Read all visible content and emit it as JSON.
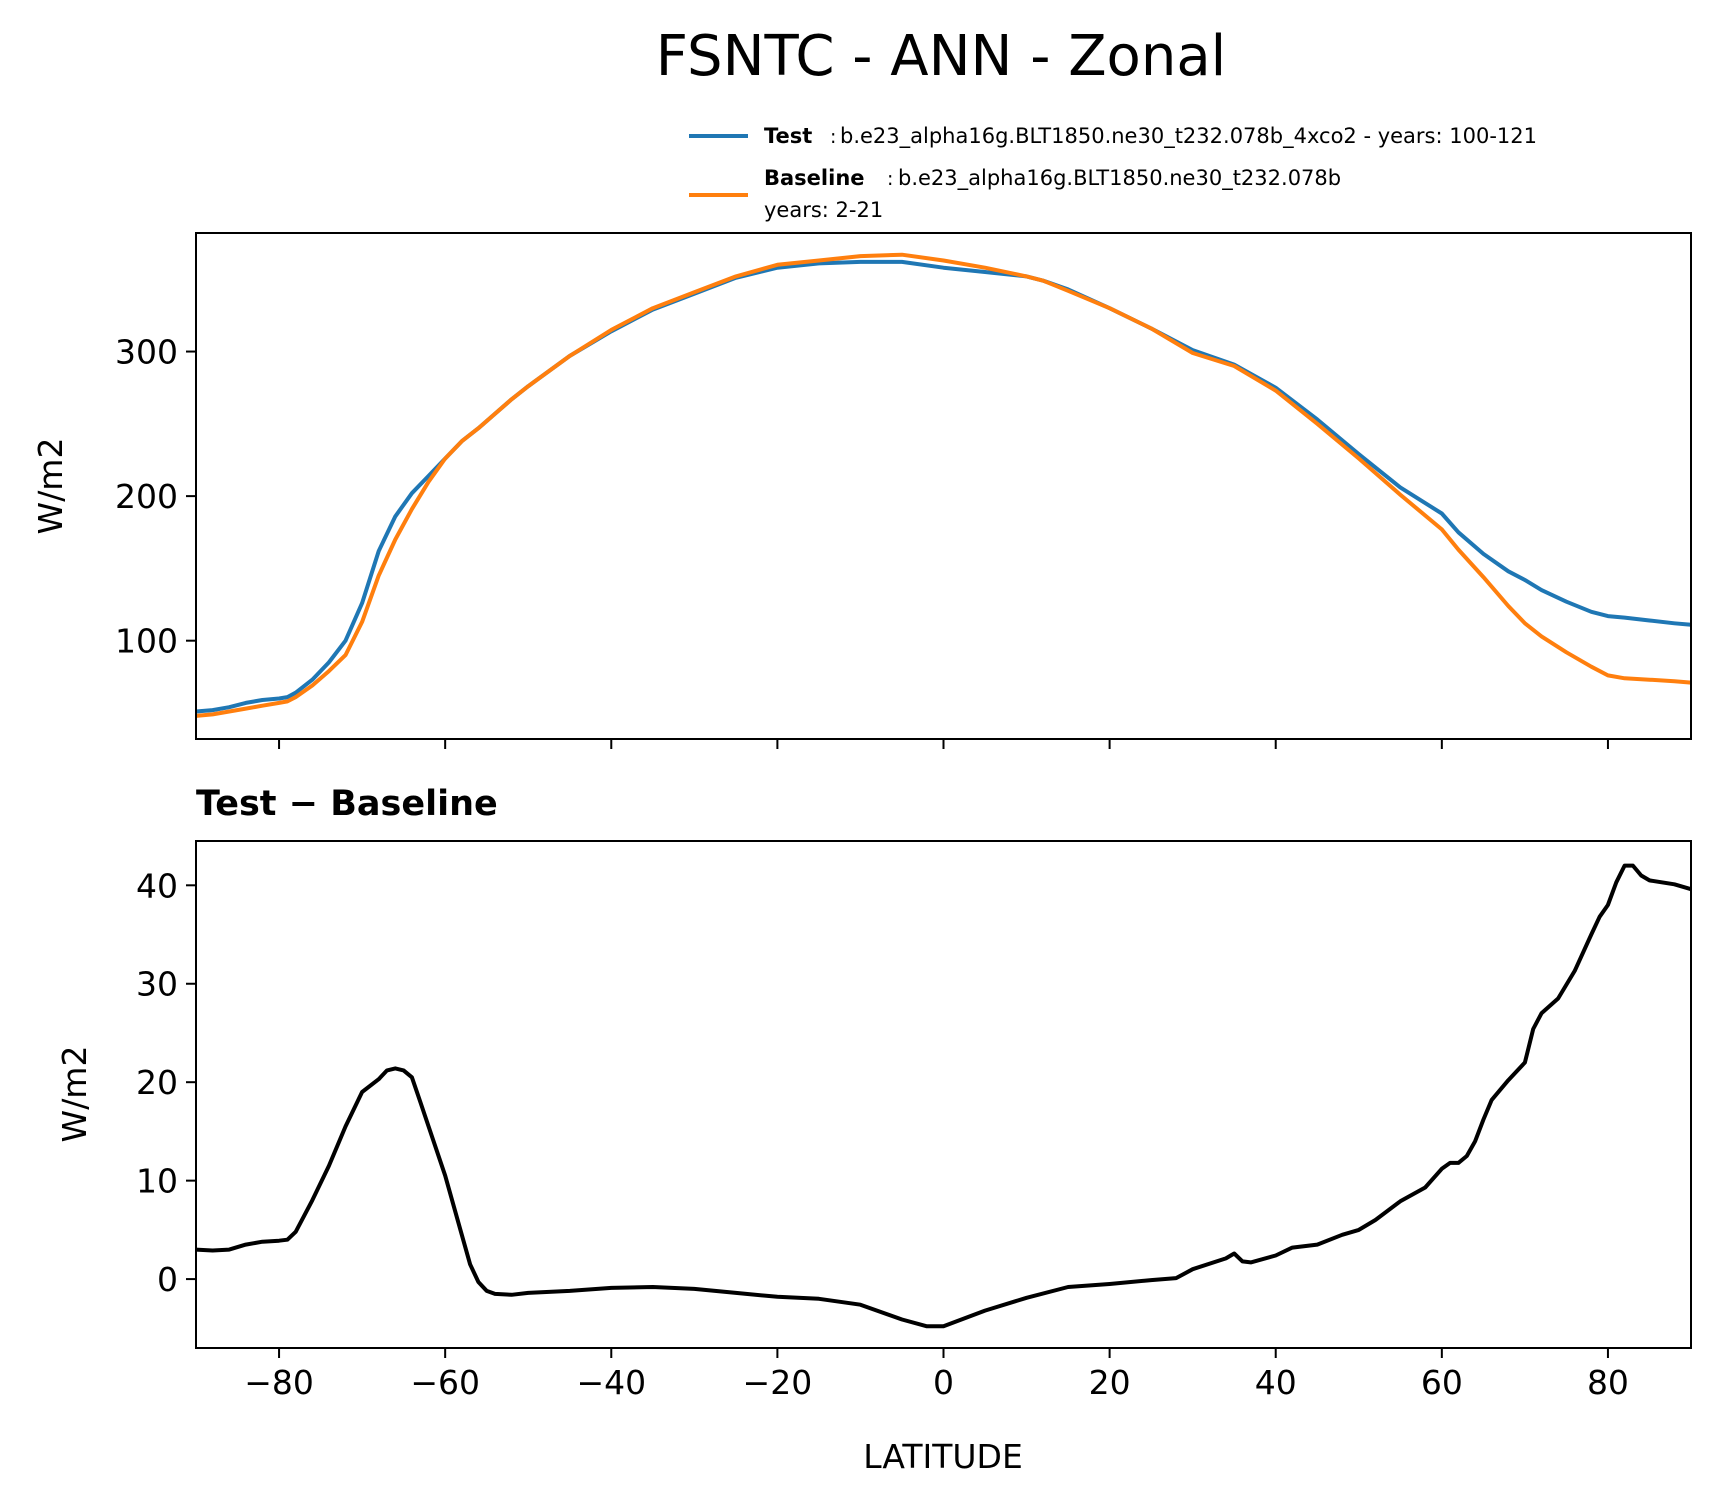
{
  "title": "FSNTC - ANN - Zonal",
  "chart_data": [
    {
      "type": "line",
      "ylabel": "W/m2",
      "xlim": [
        -90,
        90
      ],
      "ylim": [
        32,
        382
      ],
      "yticks": [
        100,
        200,
        300
      ],
      "legend_placement": "top-right, above plot",
      "series": [
        {
          "name": "Test",
          "legend_desc": "b.e23_alpha16g.BLT1850.ne30_t232.078b_4xco2 - years: 100-121",
          "color": "#1f77b4",
          "x": [
            -90,
            -88,
            -86,
            -84,
            -82,
            -80,
            -79,
            -78,
            -76,
            -74,
            -72,
            -70,
            -68,
            -66,
            -64,
            -62,
            -60,
            -58,
            -56,
            -54,
            -52,
            -50,
            -45,
            -40,
            -35,
            -30,
            -25,
            -20,
            -15,
            -10,
            -5,
            0,
            5,
            10,
            12,
            15,
            20,
            25,
            30,
            35,
            40,
            45,
            50,
            55,
            60,
            62,
            65,
            68,
            70,
            72,
            75,
            78,
            80,
            82,
            85,
            88,
            90
          ],
          "values": [
            51,
            52,
            54,
            57,
            59,
            60,
            61,
            64,
            73,
            85,
            100,
            126,
            162,
            186,
            202,
            214,
            226,
            238,
            247,
            257,
            267,
            276,
            297,
            314,
            329,
            340,
            351,
            358,
            361,
            362,
            362,
            358,
            355,
            352,
            349,
            343,
            330,
            316,
            301,
            291,
            275,
            253,
            229,
            206,
            188,
            175,
            160,
            148,
            142,
            135,
            127,
            120,
            117,
            116,
            114,
            112,
            111
          ]
        },
        {
          "name": "Baseline",
          "legend_desc": "b.e23_alpha16g.BLT1850.ne30_t232.078b",
          "legend_desc2": "years: 2-21",
          "color": "#ff7f0e",
          "x": [
            -90,
            -88,
            -86,
            -84,
            -82,
            -80,
            -79,
            -78,
            -76,
            -74,
            -72,
            -70,
            -68,
            -66,
            -64,
            -62,
            -60,
            -58,
            -56,
            -54,
            -52,
            -50,
            -45,
            -40,
            -35,
            -30,
            -25,
            -20,
            -15,
            -10,
            -5,
            0,
            5,
            10,
            12,
            15,
            20,
            25,
            30,
            35,
            40,
            45,
            50,
            55,
            60,
            62,
            65,
            68,
            70,
            72,
            75,
            78,
            80,
            82,
            85,
            88,
            90
          ],
          "values": [
            48,
            49,
            51,
            53,
            55,
            57,
            58,
            61,
            69,
            79,
            90,
            113,
            145,
            170,
            191,
            210,
            226,
            238,
            247,
            257,
            267,
            276,
            297,
            315,
            330,
            341,
            352,
            360,
            363,
            366,
            367,
            363,
            358,
            352,
            349,
            342,
            330,
            316,
            299,
            290,
            273,
            250,
            226,
            201,
            177,
            163,
            144,
            124,
            112,
            103,
            92,
            82,
            76,
            74,
            73,
            72,
            71
          ]
        }
      ]
    },
    {
      "type": "line",
      "title": "Test − Baseline",
      "xlabel": "LATITUDE",
      "ylabel": "W/m2",
      "xlim": [
        -90,
        90
      ],
      "ylim": [
        -7,
        44.5
      ],
      "xticks": [
        -80,
        -60,
        -40,
        -20,
        0,
        20,
        40,
        60,
        80
      ],
      "xtick_labels": [
        "−80",
        "−60",
        "−40",
        "−20",
        "0",
        "20",
        "40",
        "60",
        "80"
      ],
      "yticks": [
        0,
        10,
        20,
        30,
        40
      ],
      "series": [
        {
          "color": "#000000",
          "x": [
            -90,
            -88,
            -86,
            -84,
            -82,
            -80,
            -79,
            -78,
            -76,
            -74,
            -72,
            -70,
            -68,
            -67,
            -66,
            -65,
            -64,
            -63,
            -62,
            -60,
            -58,
            -57,
            -56,
            -55,
            -54,
            -52,
            -50,
            -45,
            -40,
            -35,
            -30,
            -25,
            -20,
            -15,
            -10,
            -5,
            -2,
            0,
            5,
            10,
            15,
            20,
            25,
            28,
            30,
            34,
            35,
            36,
            37,
            40,
            42,
            45,
            48,
            50,
            52,
            55,
            58,
            60,
            61,
            62,
            63,
            64,
            65,
            66,
            67,
            68,
            70,
            71,
            72,
            74,
            76,
            78,
            79,
            80,
            81,
            82,
            83,
            84,
            85,
            88,
            90
          ],
          "values": [
            3,
            2.9,
            3,
            3.5,
            3.8,
            3.9,
            4,
            4.8,
            8,
            11.5,
            15.5,
            19,
            20.3,
            21.2,
            21.4,
            21.2,
            20.5,
            18,
            15.5,
            10.5,
            4.5,
            1.5,
            -0.3,
            -1.2,
            -1.5,
            -1.6,
            -1.4,
            -1.2,
            -0.9,
            -0.8,
            -1,
            -1.4,
            -1.8,
            -2,
            -2.6,
            -4.1,
            -4.8,
            -4.8,
            -3.2,
            -1.9,
            -0.8,
            -0.5,
            -0.1,
            0.1,
            1,
            2.1,
            2.6,
            1.8,
            1.7,
            2.4,
            3.2,
            3.5,
            4.5,
            5,
            6,
            7.9,
            9.3,
            11.2,
            11.8,
            11.8,
            12.5,
            14,
            16.2,
            18.2,
            19.2,
            20.2,
            22,
            25.4,
            27,
            28.5,
            31.3,
            35,
            36.8,
            38,
            40.3,
            42,
            42,
            41,
            40.5,
            40.1,
            39.6
          ]
        }
      ]
    }
  ]
}
